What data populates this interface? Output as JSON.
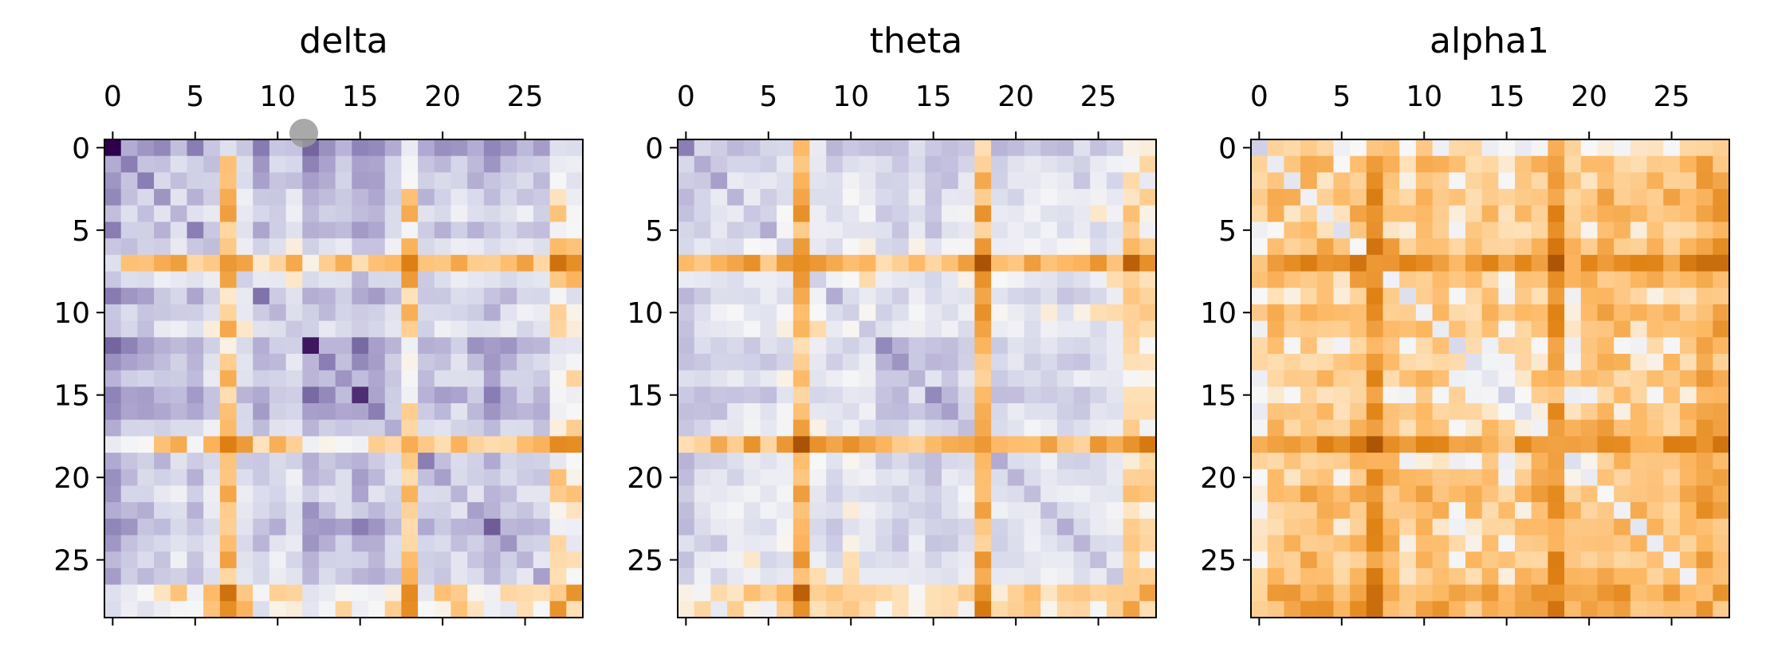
{
  "chart_data": [
    {
      "type": "heatmap",
      "title": "delta",
      "rows": 29,
      "cols": 29,
      "xticks": [
        "0",
        "5",
        "10",
        "15",
        "20",
        "25"
      ],
      "yticks": [
        "0",
        "5",
        "10",
        "15",
        "20",
        "25"
      ],
      "xlabel": "",
      "ylabel": "",
      "colormap": "PuOr",
      "matrix_symmetric": true,
      "node_values": [
        0.92,
        0.55,
        0.55,
        0.45,
        0.3,
        0.55,
        0.25,
        -0.55,
        0.15,
        0.6,
        0.3,
        0.2,
        0.8,
        0.55,
        0.45,
        0.75,
        0.55,
        0.35,
        -0.45,
        0.55,
        0.4,
        0.3,
        0.4,
        0.65,
        0.45,
        0.3,
        0.4,
        -0.3,
        -0.2
      ],
      "high_anomaly_nodes": [
        0,
        8,
        12,
        15
      ],
      "low_anomaly_nodes": [
        7,
        10,
        18,
        27,
        28
      ],
      "highlight_cells": [
        [
          0,
          0
        ],
        [
          3,
          3
        ],
        [
          12,
          15
        ]
      ],
      "grid": false
    },
    {
      "type": "heatmap",
      "title": "theta",
      "rows": 29,
      "cols": 29,
      "xticks": [
        "0",
        "5",
        "10",
        "15",
        "20",
        "25"
      ],
      "yticks": [
        "0",
        "5",
        "10",
        "15",
        "20",
        "25"
      ],
      "xlabel": "",
      "ylabel": "",
      "colormap": "PuOr",
      "matrix_symmetric": true,
      "node_values": [
        0.55,
        0.35,
        0.4,
        0.3,
        0.2,
        0.35,
        0.15,
        -0.6,
        0.15,
        0.35,
        0.15,
        0.2,
        0.5,
        0.45,
        0.3,
        0.5,
        0.4,
        0.25,
        -0.55,
        0.35,
        0.3,
        0.25,
        0.25,
        0.35,
        0.3,
        0.25,
        0.2,
        -0.3,
        -0.2
      ],
      "high_anomaly_nodes": [
        7,
        18,
        28
      ],
      "low_anomaly_nodes": [],
      "highlight_cells": [
        [
          7,
          7
        ],
        [
          28,
          28
        ],
        [
          7,
          18
        ]
      ],
      "grid": false
    },
    {
      "type": "heatmap",
      "title": "alpha1",
      "rows": 29,
      "cols": 29,
      "xticks": [
        "0",
        "5",
        "10",
        "15",
        "20",
        "25"
      ],
      "yticks": [
        "0",
        "5",
        "10",
        "15",
        "20",
        "25"
      ],
      "xlabel": "",
      "ylabel": "",
      "colormap": "PuOr",
      "matrix_symmetric": true,
      "node_values": [
        0.15,
        -0.05,
        0.0,
        -0.1,
        -0.05,
        0.05,
        -0.15,
        -0.55,
        -0.1,
        0.05,
        -0.1,
        -0.05,
        0.1,
        0.05,
        0.0,
        0.15,
        0.05,
        -0.1,
        -0.5,
        0.05,
        -0.05,
        -0.15,
        -0.1,
        0.0,
        -0.05,
        -0.1,
        -0.1,
        -0.35,
        -0.3
      ],
      "high_anomaly_nodes": [
        7,
        18,
        28
      ],
      "low_anomaly_nodes": [],
      "highlight_cells": [
        [
          28,
          28
        ],
        [
          7,
          7
        ],
        [
          7,
          18
        ]
      ],
      "grid": false
    }
  ]
}
